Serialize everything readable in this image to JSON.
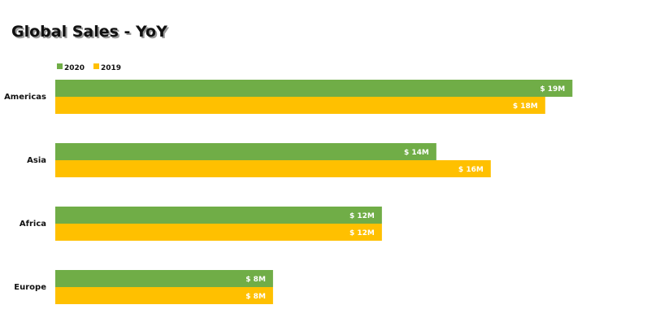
{
  "chart_data": {
    "type": "bar",
    "orientation": "horizontal",
    "title": "Global Sales - YoY",
    "categories": [
      "Americas",
      "Asia",
      "Africa",
      "Europe"
    ],
    "series": [
      {
        "name": "2020",
        "color": "#70AD47",
        "values": [
          19,
          14,
          12,
          8
        ],
        "labels": [
          "$ 19M",
          "$ 14M",
          "$ 12M",
          "$ 8M"
        ]
      },
      {
        "name": "2019",
        "color": "#FFC000",
        "values": [
          18,
          16,
          12,
          8
        ],
        "labels": [
          "$ 18M",
          "$ 16M",
          "$ 12M",
          "$ 8M"
        ]
      }
    ],
    "xlim": [
      0,
      21.5
    ],
    "grid": false,
    "legend_position": "top-left",
    "xlabel": "",
    "ylabel": ""
  }
}
